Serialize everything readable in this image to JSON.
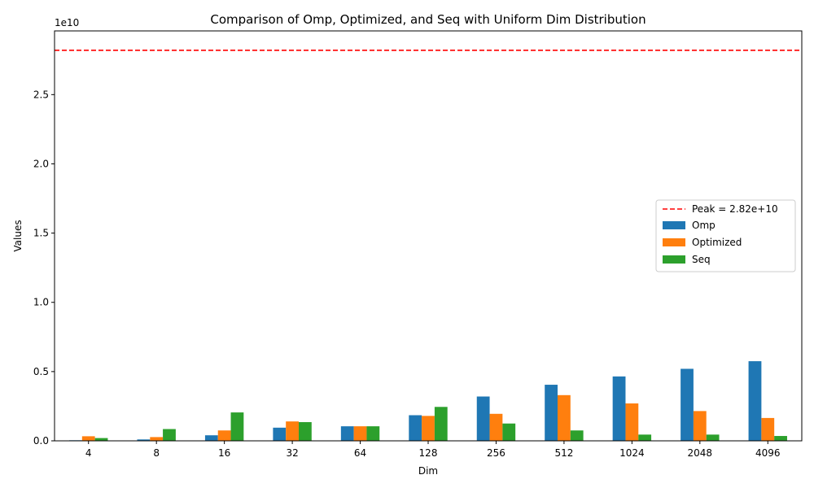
{
  "chart_data": {
    "type": "bar",
    "title": "Comparison of Omp, Optimized, and Seq with Uniform Dim Distribution",
    "xlabel": "Dim",
    "ylabel": "Values",
    "y_offset_label": "1e10",
    "ylim": [
      0,
      29600000000.0
    ],
    "yticks": [
      0,
      5000000000.0,
      10000000000.0,
      15000000000.0,
      20000000000.0,
      25000000000.0
    ],
    "ytick_labels": [
      "0.0",
      "0.5",
      "1.0",
      "1.5",
      "2.0",
      "2.5"
    ],
    "categories": [
      "4",
      "8",
      "16",
      "32",
      "64",
      "128",
      "256",
      "512",
      "1024",
      "2048",
      "4096"
    ],
    "series": [
      {
        "name": "Omp",
        "color": "#1f77b4",
        "values": [
          40000000.0,
          100000000.0,
          400000000.0,
          950000000.0,
          1050000000.0,
          1850000000.0,
          3200000000.0,
          4050000000.0,
          4650000000.0,
          5200000000.0,
          5750000000.0
        ]
      },
      {
        "name": "Optimized",
        "color": "#ff7f0e",
        "values": [
          330000000.0,
          270000000.0,
          750000000.0,
          1400000000.0,
          1050000000.0,
          1800000000.0,
          1950000000.0,
          3300000000.0,
          2700000000.0,
          2150000000.0,
          1650000000.0
        ]
      },
      {
        "name": "Seq",
        "color": "#2ca02c",
        "values": [
          200000000.0,
          850000000.0,
          2050000000.0,
          1350000000.0,
          1050000000.0,
          2450000000.0,
          1250000000.0,
          750000000.0,
          450000000.0,
          450000000.0,
          350000000.0
        ]
      }
    ],
    "reference_line": {
      "label": "Peak = 2.82e+10",
      "value": 28200000000.0,
      "color": "#ff0000",
      "style": "dashed"
    },
    "legend_placement": "center-right",
    "grid": false
  }
}
